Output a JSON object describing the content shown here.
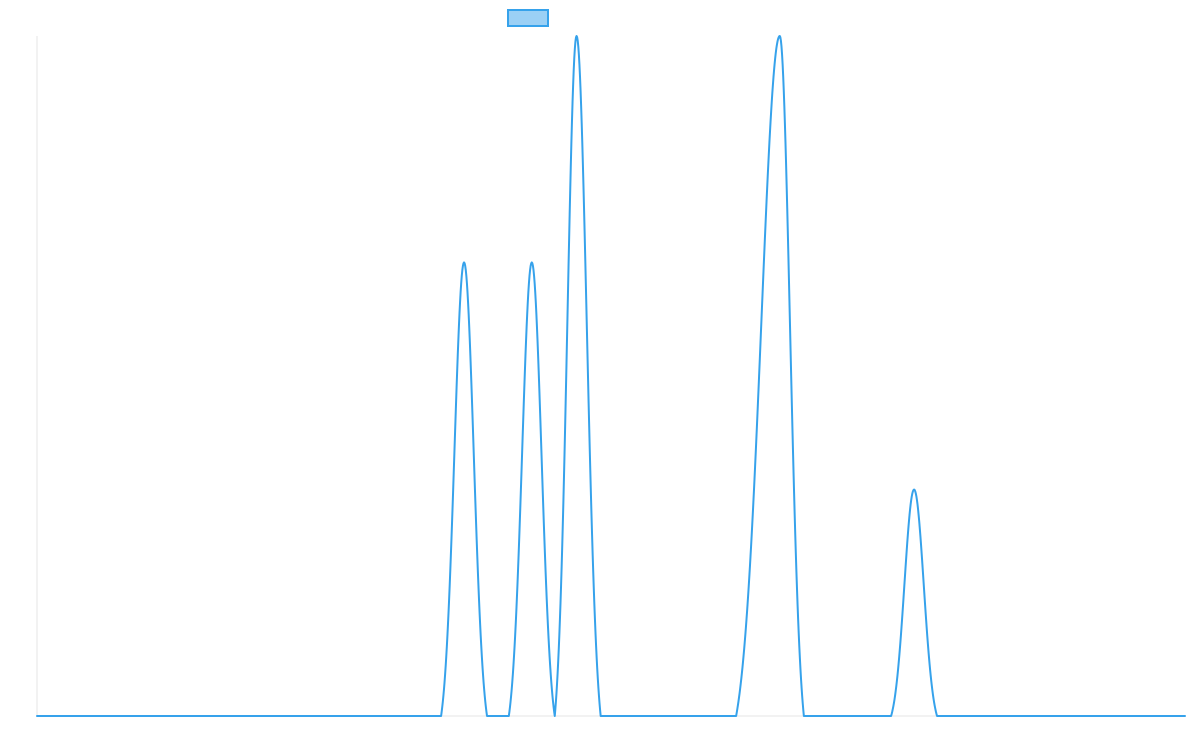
{
  "chart_data": {
    "type": "line",
    "title": "",
    "xlabel": "",
    "ylabel": "",
    "grid": false,
    "legend": {
      "position": "top-center",
      "entries": [
        {
          "label": "",
          "swatch_fill": "#9bd0f5",
          "swatch_border": "#36a2eb"
        }
      ]
    },
    "xlim": [
      0,
      1000
    ],
    "ylim": [
      0,
      1
    ],
    "series": [
      {
        "name": "",
        "color": "#36a2eb",
        "shape": "narrow-peaks-on-zero-baseline",
        "peaks": [
          {
            "center": 372,
            "height": 0.667,
            "support": [
              352,
              392
            ]
          },
          {
            "center": 431,
            "height": 0.667,
            "support": [
              411,
              451
            ]
          },
          {
            "center": 470,
            "height": 1.0,
            "support": [
              451,
              491
            ]
          },
          {
            "center": 647,
            "height": 1.0,
            "support": [
              609,
              668
            ]
          },
          {
            "center": 764,
            "height": 0.333,
            "support": [
              744,
              784
            ]
          }
        ]
      }
    ]
  }
}
